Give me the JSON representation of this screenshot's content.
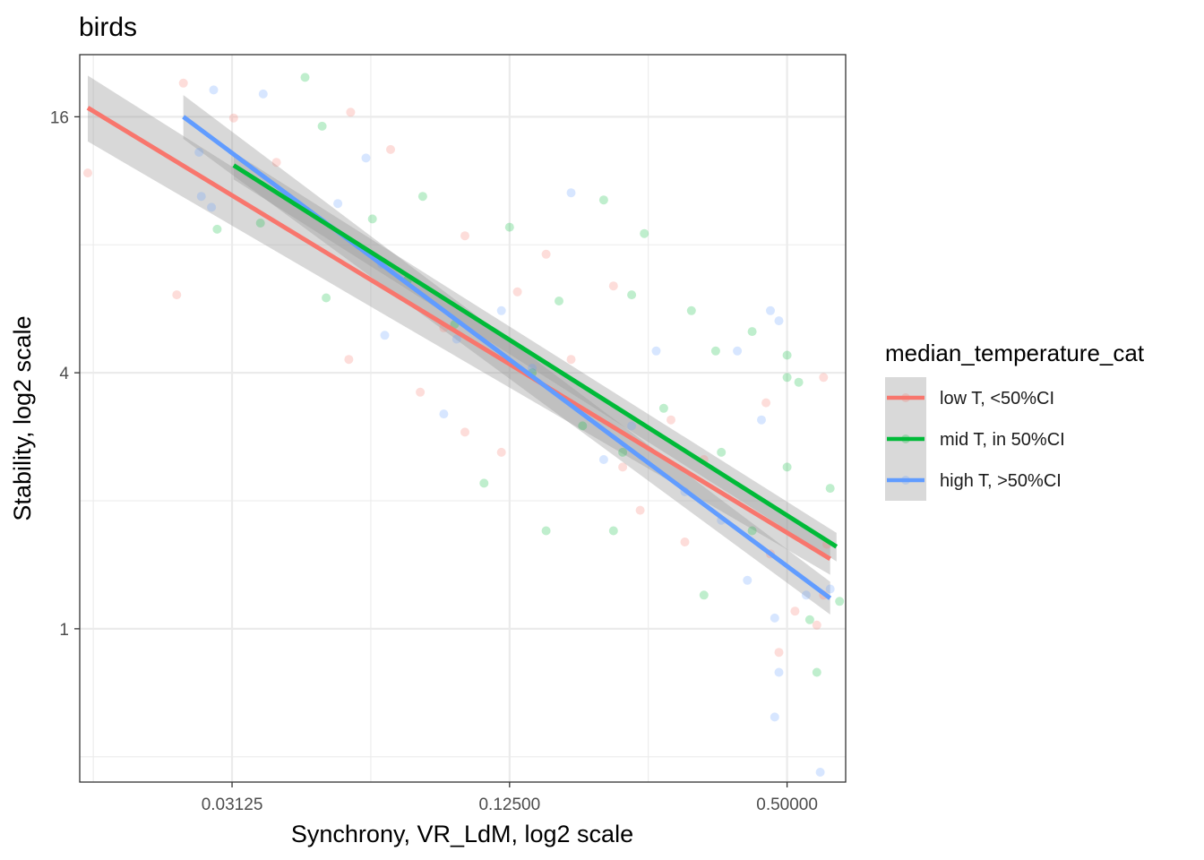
{
  "chart_data": {
    "type": "scatter",
    "title": "birds",
    "xlabel": "Synchrony, VR_LdM, log2 scale",
    "ylabel": "Stability, log2 scale",
    "x_scale": "log2",
    "y_scale": "log2",
    "xlim": [
      0.0146,
      0.67
    ],
    "ylim": [
      0.436,
      22.4
    ],
    "x_ticks": [
      {
        "value": 0.03125,
        "label": "0.03125"
      },
      {
        "value": 0.125,
        "label": "0.12500"
      },
      {
        "value": 0.5,
        "label": "0.50000"
      }
    ],
    "y_ticks": [
      {
        "value": 1,
        "label": "1"
      },
      {
        "value": 4,
        "label": "4"
      },
      {
        "value": 16,
        "label": "16"
      }
    ],
    "grid": true,
    "point_alpha": 0.25,
    "legend": {
      "title": "median_temperature_cat",
      "position": "right",
      "entries": [
        {
          "label": "low T, <50%CI",
          "color": "#F8766D"
        },
        {
          "label": "mid T, in 50%CI",
          "color": "#00BA38"
        },
        {
          "label": "high T, >50%CI",
          "color": "#619CFF"
        }
      ]
    },
    "series": [
      {
        "name": "low T, <50%CI",
        "color": "#F8766D",
        "points_sample": [
          [
            0.0152,
            11.8
          ],
          [
            0.0245,
            19.2
          ],
          [
            0.0315,
            15.9
          ],
          [
            0.039,
            12.5
          ],
          [
            0.0237,
            6.1
          ],
          [
            0.0565,
            16.4
          ],
          [
            0.069,
            13.4
          ],
          [
            0.1,
            8.4
          ],
          [
            0.15,
            7.6
          ],
          [
            0.21,
            6.4
          ],
          [
            0.45,
            3.4
          ],
          [
            0.6,
            3.9
          ],
          [
            0.22,
            2.4
          ],
          [
            0.1,
            2.9
          ],
          [
            0.056,
            4.3
          ],
          [
            0.3,
            1.6
          ],
          [
            0.46,
            1.5
          ],
          [
            0.6,
            1.2
          ],
          [
            0.58,
            1.02
          ],
          [
            0.48,
            0.88
          ],
          [
            0.13,
            6.2
          ],
          [
            0.09,
            5.1
          ],
          [
            0.17,
            4.3
          ],
          [
            0.28,
            3.1
          ],
          [
            0.33,
            2.5
          ],
          [
            0.61,
            1.58
          ],
          [
            0.52,
            1.1
          ],
          [
            0.08,
            3.6
          ],
          [
            0.12,
            2.6
          ],
          [
            0.24,
            1.9
          ]
        ],
        "trend": {
          "x0": 0.0152,
          "y0": 16.8,
          "x1": 0.62,
          "y1": 1.46,
          "band": [
            [
              0.0152,
              20.0,
              14.0
            ],
            [
              0.62,
              1.58,
              1.34
            ]
          ]
        }
      },
      {
        "name": "mid T, in 50%CI",
        "color": "#00BA38",
        "points_sample": [
          [
            0.045,
            19.8
          ],
          [
            0.049,
            15.2
          ],
          [
            0.029,
            8.7
          ],
          [
            0.036,
            9.0
          ],
          [
            0.05,
            6.0
          ],
          [
            0.063,
            9.2
          ],
          [
            0.081,
            10.4
          ],
          [
            0.125,
            8.8
          ],
          [
            0.2,
            10.2
          ],
          [
            0.245,
            8.5
          ],
          [
            0.23,
            6.1
          ],
          [
            0.31,
            5.6
          ],
          [
            0.35,
            4.5
          ],
          [
            0.42,
            5.0
          ],
          [
            0.5,
            4.4
          ],
          [
            0.5,
            3.9
          ],
          [
            0.53,
            3.8
          ],
          [
            0.5,
            2.4
          ],
          [
            0.65,
            1.16
          ],
          [
            0.58,
            0.79
          ],
          [
            0.56,
            1.05
          ],
          [
            0.15,
            1.7
          ],
          [
            0.11,
            2.2
          ],
          [
            0.18,
            3.0
          ],
          [
            0.22,
            2.6
          ],
          [
            0.095,
            5.2
          ],
          [
            0.075,
            6.6
          ],
          [
            0.14,
            4.0
          ],
          [
            0.27,
            3.3
          ],
          [
            0.36,
            2.6
          ],
          [
            0.42,
            1.7
          ],
          [
            0.62,
            2.14
          ],
          [
            0.16,
            5.9
          ],
          [
            0.21,
            1.7
          ],
          [
            0.33,
            1.2
          ]
        ],
        "trend": {
          "x0": 0.0315,
          "y0": 12.3,
          "x1": 0.64,
          "y1": 1.56,
          "band": [
            [
              0.0315,
              13.2,
              11.4
            ],
            [
              0.64,
              1.68,
              1.44
            ]
          ]
        }
      },
      {
        "name": "high T, >50%CI",
        "color": "#619CFF",
        "points_sample": [
          [
            0.0285,
            18.5
          ],
          [
            0.0365,
            18.1
          ],
          [
            0.0265,
            13.2
          ],
          [
            0.0282,
            9.8
          ],
          [
            0.0268,
            10.4
          ],
          [
            0.061,
            12.8
          ],
          [
            0.053,
            10.0
          ],
          [
            0.17,
            10.6
          ],
          [
            0.067,
            4.9
          ],
          [
            0.096,
            4.8
          ],
          [
            0.46,
            5.6
          ],
          [
            0.48,
            5.3
          ],
          [
            0.39,
            4.5
          ],
          [
            0.26,
            4.5
          ],
          [
            0.44,
            3.1
          ],
          [
            0.41,
            1.3
          ],
          [
            0.47,
            1.06
          ],
          [
            0.48,
            0.79
          ],
          [
            0.47,
            0.62
          ],
          [
            0.59,
            0.46
          ],
          [
            0.62,
            1.24
          ],
          [
            0.09,
            3.2
          ],
          [
            0.14,
            4.1
          ],
          [
            0.23,
            3.0
          ],
          [
            0.3,
            2.1
          ],
          [
            0.36,
            1.8
          ],
          [
            0.55,
            1.2
          ],
          [
            0.12,
            5.6
          ],
          [
            0.2,
            2.5
          ],
          [
            0.066,
            7.2
          ]
        ],
        "trend": {
          "x0": 0.0245,
          "y0": 16.0,
          "x1": 0.62,
          "y1": 1.18,
          "band": [
            [
              0.0245,
              18.0,
              14.2
            ],
            [
              0.62,
              1.29,
              1.08
            ]
          ]
        }
      }
    ]
  }
}
